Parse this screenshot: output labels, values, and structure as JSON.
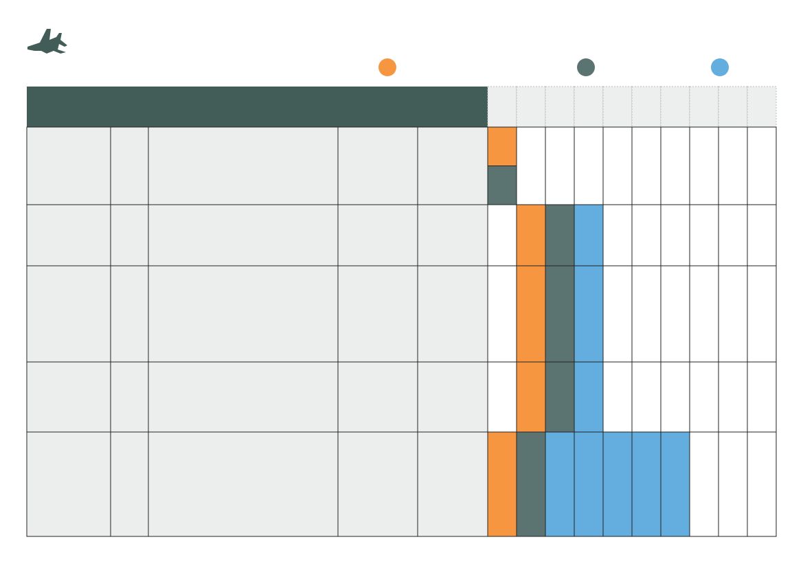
{
  "colors": {
    "header_bg": "#425c58",
    "cell_bg": "#eceeed",
    "timeline_header_bg": "#edeeee",
    "orange": "#f79641",
    "slate": "#5b7471",
    "blue": "#63addf",
    "white": "#ffffff"
  },
  "logo": {
    "icon": "fighter-jet-icon"
  },
  "legend": [
    {
      "icon": "orange-dot",
      "color": "orange"
    },
    {
      "icon": "slate-dot",
      "color": "slate"
    },
    {
      "icon": "blue-dot",
      "color": "blue"
    }
  ],
  "table": {
    "header_text": "",
    "timeline_period_count": 10,
    "rows": [
      {
        "cells": [
          "",
          "",
          "",
          "",
          ""
        ],
        "bars": [
          [
            "orange",
            "slate"
          ]
        ]
      },
      {
        "cells": [
          "",
          "",
          "",
          "",
          ""
        ],
        "bars": [
          null,
          "orange",
          "slate",
          "blue"
        ]
      },
      {
        "cells": [
          "",
          "",
          "",
          "",
          ""
        ],
        "bars": [
          null,
          "orange",
          "slate",
          "blue"
        ]
      },
      {
        "cells": [
          "",
          "",
          "",
          "",
          ""
        ],
        "bars": [
          null,
          "orange",
          "slate",
          "blue"
        ]
      },
      {
        "cells": [
          "",
          "",
          "",
          "",
          ""
        ],
        "bars": [
          "orange",
          "slate",
          "blue",
          "blue",
          "blue",
          "blue",
          "blue"
        ]
      }
    ]
  }
}
